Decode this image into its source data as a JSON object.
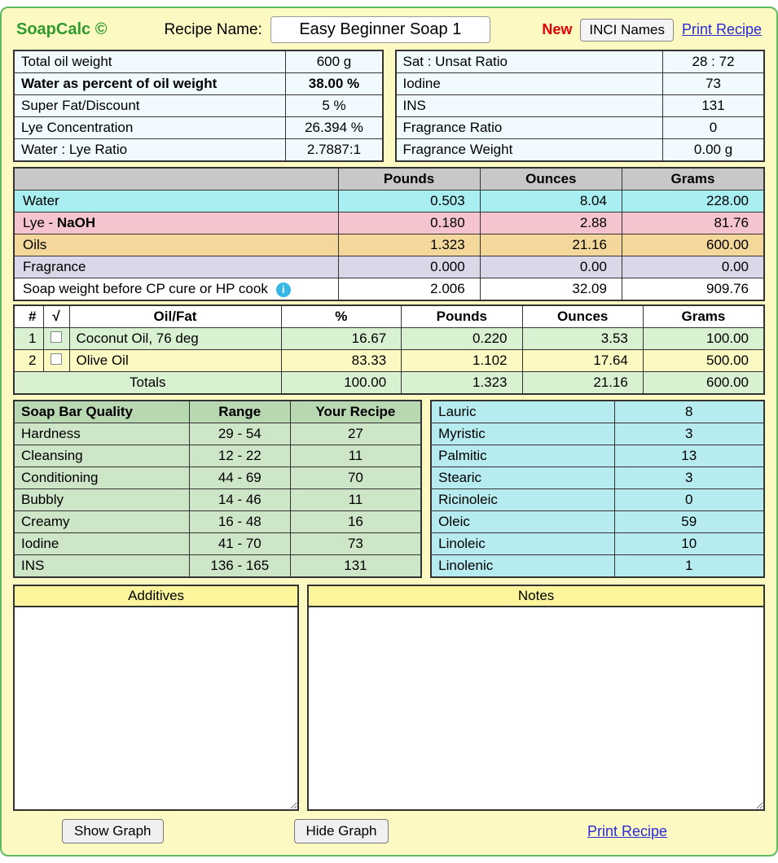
{
  "header": {
    "logo": "SoapCalc ©",
    "recipe_label": "Recipe Name:",
    "recipe_value": "Easy Beginner Soap 1",
    "new_label": "New",
    "inci_btn": "INCI Names",
    "print_link": "Print Recipe"
  },
  "props_left": [
    {
      "label": "Total oil weight",
      "value": "600 g",
      "bold": false
    },
    {
      "label": "Water as percent of oil weight",
      "value": "38.00 %",
      "bold": true
    },
    {
      "label": "Super Fat/Discount",
      "value": "5 %",
      "bold": false
    },
    {
      "label": "Lye Concentration",
      "value": "26.394 %",
      "bold": false
    },
    {
      "label": "Water : Lye Ratio",
      "value": "2.7887:1",
      "bold": false
    }
  ],
  "props_right": [
    {
      "label": "Sat : Unsat Ratio",
      "value": "28 : 72"
    },
    {
      "label": "Iodine",
      "value": "73"
    },
    {
      "label": "INS",
      "value": "131"
    },
    {
      "label": "Fragrance Ratio",
      "value": "0"
    },
    {
      "label": "Fragrance Weight",
      "value": "0.00 g"
    }
  ],
  "amounts": {
    "headers": [
      "Pounds",
      "Ounces",
      "Grams"
    ],
    "rows": [
      {
        "key": "water",
        "label": "Water",
        "pounds": "0.503",
        "ounces": "8.04",
        "grams": "228.00",
        "row_class": "row-water"
      },
      {
        "key": "lye",
        "label_html": "Lye - <b>NaOH</b>",
        "pounds": "0.180",
        "ounces": "2.88",
        "grams": "81.76",
        "row_class": "row-lye"
      },
      {
        "key": "oils",
        "label": "Oils",
        "pounds": "1.323",
        "ounces": "21.16",
        "grams": "600.00",
        "row_class": "row-oils"
      },
      {
        "key": "frag",
        "label": "Fragrance",
        "pounds": "0.000",
        "ounces": "0.00",
        "grams": "0.00",
        "row_class": "row-frag"
      },
      {
        "key": "soap",
        "label": "Soap weight before CP cure or HP cook",
        "pounds": "2.006",
        "ounces": "32.09",
        "grams": "909.76",
        "row_class": "row-soap",
        "info": true
      }
    ]
  },
  "oils": {
    "headers": {
      "num": "#",
      "check": "√",
      "name": "Oil/Fat",
      "pct": "%",
      "lb": "Pounds",
      "oz": "Ounces",
      "g": "Grams"
    },
    "rows": [
      {
        "n": "1",
        "name": "Coconut Oil, 76 deg",
        "pct": "16.67",
        "lb": "0.220",
        "oz": "3.53",
        "g": "100.00",
        "even": true
      },
      {
        "n": "2",
        "name": "Olive Oil",
        "pct": "83.33",
        "lb": "1.102",
        "oz": "17.64",
        "g": "500.00",
        "even": false
      }
    ],
    "totals": {
      "label": "Totals",
      "pct": "100.00",
      "lb": "1.323",
      "oz": "21.16",
      "g": "600.00"
    }
  },
  "quality": {
    "headers": {
      "q": "Soap Bar Quality",
      "r": "Range",
      "y": "Your Recipe"
    },
    "rows": [
      {
        "q": "Hardness",
        "r": "29 - 54",
        "y": "27"
      },
      {
        "q": "Cleansing",
        "r": "12 - 22",
        "y": "11"
      },
      {
        "q": "Conditioning",
        "r": "44 - 69",
        "y": "70"
      },
      {
        "q": "Bubbly",
        "r": "14 - 46",
        "y": "11"
      },
      {
        "q": "Creamy",
        "r": "16 - 48",
        "y": "16"
      },
      {
        "q": "Iodine",
        "r": "41 - 70",
        "y": "73"
      },
      {
        "q": "INS",
        "r": "136 - 165",
        "y": "131"
      }
    ]
  },
  "fatty": [
    {
      "n": "Lauric",
      "v": "8"
    },
    {
      "n": "Myristic",
      "v": "3"
    },
    {
      "n": "Palmitic",
      "v": "13"
    },
    {
      "n": "Stearic",
      "v": "3"
    },
    {
      "n": "Ricinoleic",
      "v": "0"
    },
    {
      "n": "Oleic",
      "v": "59"
    },
    {
      "n": "Linoleic",
      "v": "10"
    },
    {
      "n": "Linolenic",
      "v": "1"
    }
  ],
  "notes": {
    "additives_hdr": "Additives",
    "notes_hdr": "Notes",
    "additives_val": "",
    "notes_val": ""
  },
  "footer": {
    "show_graph": "Show Graph",
    "hide_graph": "Hide Graph",
    "print_recipe": "Print Recipe"
  },
  "colors": {
    "frame_bg": "#fdf9c2",
    "frame_border": "#5fbb5f",
    "water_row": "#a9eef1",
    "lye_row": "#f6c4cf",
    "oils_row": "#f4d79a",
    "frag_row": "#d9d7e8",
    "quality_bg": "#cde6c8",
    "fatty_bg": "#b6ecef",
    "link": "#2a2ad4"
  }
}
